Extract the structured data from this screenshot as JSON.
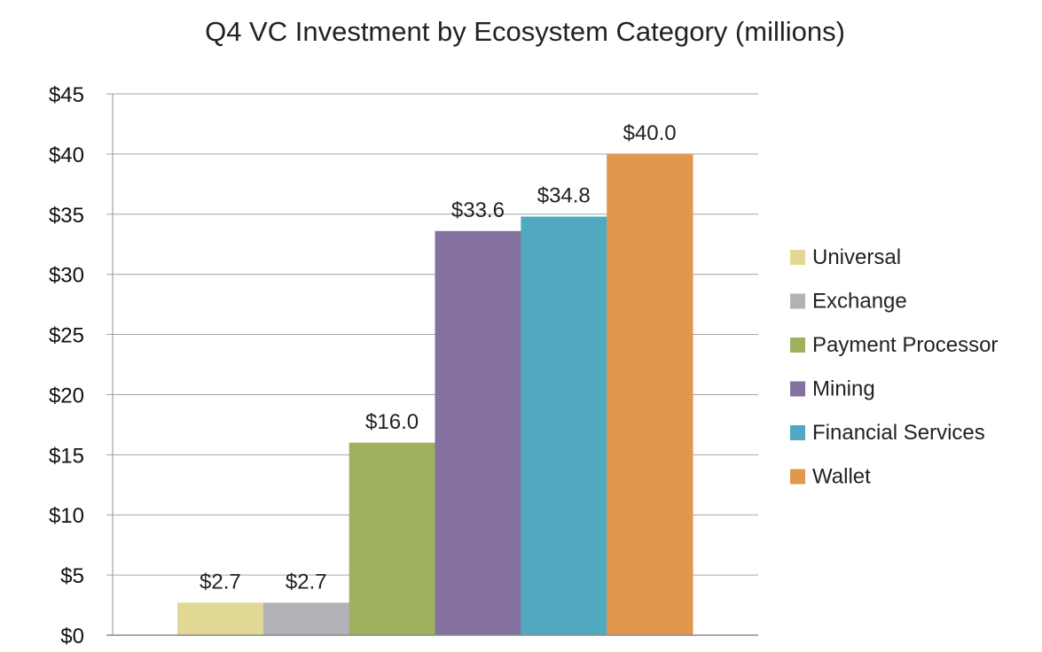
{
  "chart_data": {
    "type": "bar",
    "title": "Q4 VC Investment by Ecosystem Category (millions)",
    "xlabel": "",
    "ylabel": "",
    "ylim": [
      0,
      45
    ],
    "yticks": [
      0,
      5,
      10,
      15,
      20,
      25,
      30,
      35,
      40,
      45
    ],
    "ytick_labels": [
      "$0",
      "$5",
      "$10",
      "$15",
      "$20",
      "$25",
      "$30",
      "$35",
      "$40",
      "$45"
    ],
    "grid": true,
    "legend_position": "right",
    "series": [
      {
        "name": "Universal",
        "value": 2.7,
        "label": "$2.7",
        "color": "#e0d894"
      },
      {
        "name": "Exchange",
        "value": 2.7,
        "label": "$2.7",
        "color": "#b2b1b7"
      },
      {
        "name": "Payment Processor",
        "value": 16.0,
        "label": "$16.0",
        "color": "#9db15e"
      },
      {
        "name": "Mining",
        "value": 33.6,
        "label": "$33.6",
        "color": "#8571a0"
      },
      {
        "name": "Financial Services",
        "value": 34.8,
        "label": "$34.8",
        "color": "#50a9be"
      },
      {
        "name": "Wallet",
        "value": 40.0,
        "label": "$40.0",
        "color": "#e2974f"
      }
    ]
  }
}
